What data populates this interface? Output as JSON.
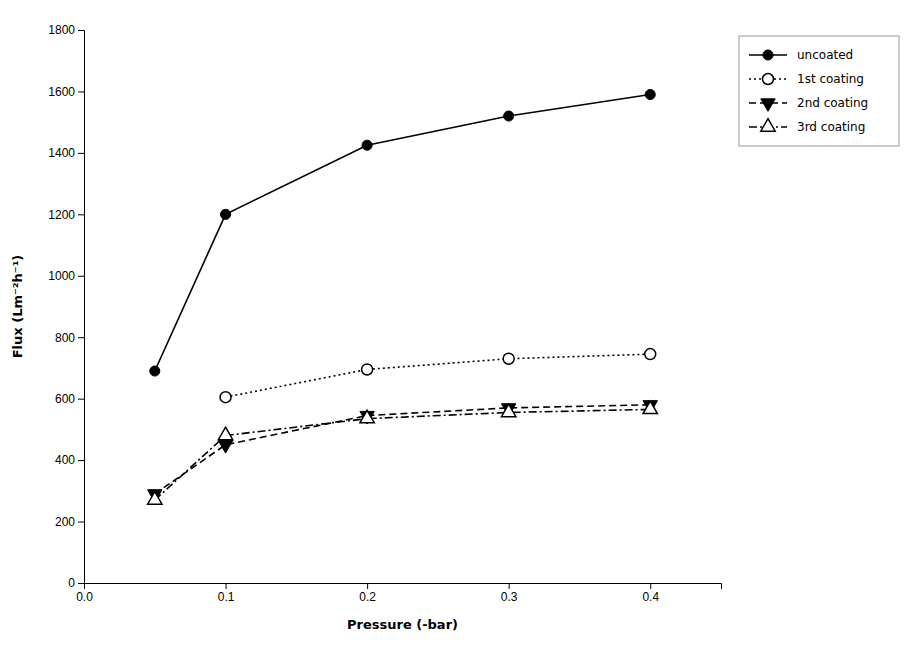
{
  "chart_data": {
    "type": "line",
    "x_label": "Pressure (-bar)",
    "y_label": "Flux (Lm⁻²h⁻¹)",
    "series": [
      {
        "name": "uncoated",
        "color": "#000000",
        "marker": "circle",
        "line_style": "solid",
        "x": [
          0.05,
          0.1,
          0.2,
          0.3,
          0.4
        ],
        "values": [
          690,
          1200,
          1425,
          1520,
          1590
        ]
      },
      {
        "name": "1st coating",
        "color": "#000000",
        "marker": "circle-open",
        "line_style": "dotted",
        "x": [
          0.1,
          0.2,
          0.3,
          0.4
        ],
        "values": [
          605,
          695,
          730,
          745
        ]
      },
      {
        "name": "2nd coating",
        "color": "#000000",
        "marker": "triangle-down",
        "line_style": "dashed",
        "x": [
          0.05,
          0.1,
          0.2,
          0.3,
          0.4
        ],
        "values": [
          290,
          450,
          545,
          570,
          580
        ]
      },
      {
        "name": "3rd coating",
        "color": "#000000",
        "marker": "triangle-up-open",
        "line_style": "dashdot",
        "x": [
          0.05,
          0.1,
          0.2,
          0.3,
          0.4
        ],
        "values": [
          270,
          480,
          535,
          555,
          565
        ]
      }
    ],
    "xlim": [
      0.0,
      0.45
    ],
    "ylim": [
      0,
      1800
    ],
    "xticks": [
      {
        "value": 0.0,
        "label": "0.0"
      },
      0.1,
      0.2,
      0.3,
      0.4
    ],
    "yticks": [
      0,
      200,
      400,
      600,
      800,
      1000,
      1200,
      1400,
      1600,
      1800
    ],
    "grid": false,
    "legend": "right"
  }
}
